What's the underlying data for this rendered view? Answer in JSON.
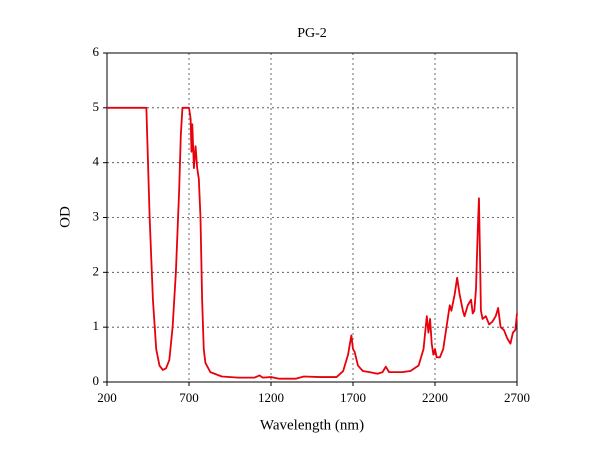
{
  "chart_data": {
    "type": "line",
    "title": "PG-2",
    "x_label": "Wavelength (nm)",
    "y_label": "OD",
    "xlim": [
      200,
      2700
    ],
    "ylim": [
      0,
      6
    ],
    "xticks": [
      200,
      700,
      1200,
      1700,
      2200,
      2700
    ],
    "yticks": [
      0,
      1,
      2,
      3,
      4,
      5,
      6
    ],
    "grid": true,
    "x": [
      200,
      440,
      445,
      460,
      480,
      500,
      520,
      540,
      560,
      580,
      600,
      620,
      640,
      650,
      660,
      700,
      710,
      715,
      720,
      730,
      740,
      750,
      760,
      770,
      780,
      790,
      800,
      830,
      900,
      1000,
      1100,
      1130,
      1150,
      1200,
      1250,
      1350,
      1400,
      1500,
      1600,
      1640,
      1670,
      1690,
      1700,
      1710,
      1730,
      1760,
      1800,
      1850,
      1880,
      1900,
      1920,
      2000,
      2050,
      2100,
      2130,
      2150,
      2160,
      2170,
      2180,
      2190,
      2200,
      2210,
      2230,
      2250,
      2270,
      2290,
      2300,
      2320,
      2335,
      2350,
      2370,
      2380,
      2400,
      2420,
      2430,
      2440,
      2450,
      2460,
      2468,
      2475,
      2480,
      2490,
      2510,
      2530,
      2550,
      2570,
      2585,
      2600,
      2620,
      2640,
      2660,
      2675,
      2690,
      2695,
      2700
    ],
    "series": [
      {
        "name": "PG-2",
        "color": "#e8000b",
        "values": [
          5,
          5,
          4.5,
          3,
          1.5,
          0.6,
          0.3,
          0.22,
          0.25,
          0.4,
          1.0,
          2.0,
          3.5,
          4.5,
          5,
          5,
          4.8,
          4.2,
          4.7,
          3.9,
          4.3,
          3.9,
          3.7,
          3.0,
          1.5,
          0.6,
          0.35,
          0.18,
          0.1,
          0.08,
          0.08,
          0.12,
          0.08,
          0.09,
          0.06,
          0.06,
          0.1,
          0.09,
          0.09,
          0.2,
          0.5,
          0.85,
          0.6,
          0.55,
          0.3,
          0.2,
          0.18,
          0.15,
          0.18,
          0.28,
          0.18,
          0.18,
          0.2,
          0.3,
          0.6,
          1.2,
          0.9,
          1.15,
          0.7,
          0.5,
          0.6,
          0.45,
          0.45,
          0.6,
          1.0,
          1.4,
          1.3,
          1.6,
          1.9,
          1.6,
          1.3,
          1.2,
          1.4,
          1.5,
          1.25,
          1.3,
          1.7,
          2.7,
          3.35,
          2.2,
          1.3,
          1.15,
          1.2,
          1.05,
          1.1,
          1.2,
          1.35,
          1.0,
          0.95,
          0.8,
          0.7,
          0.9,
          0.95,
          1.1,
          1.25
        ]
      }
    ]
  }
}
